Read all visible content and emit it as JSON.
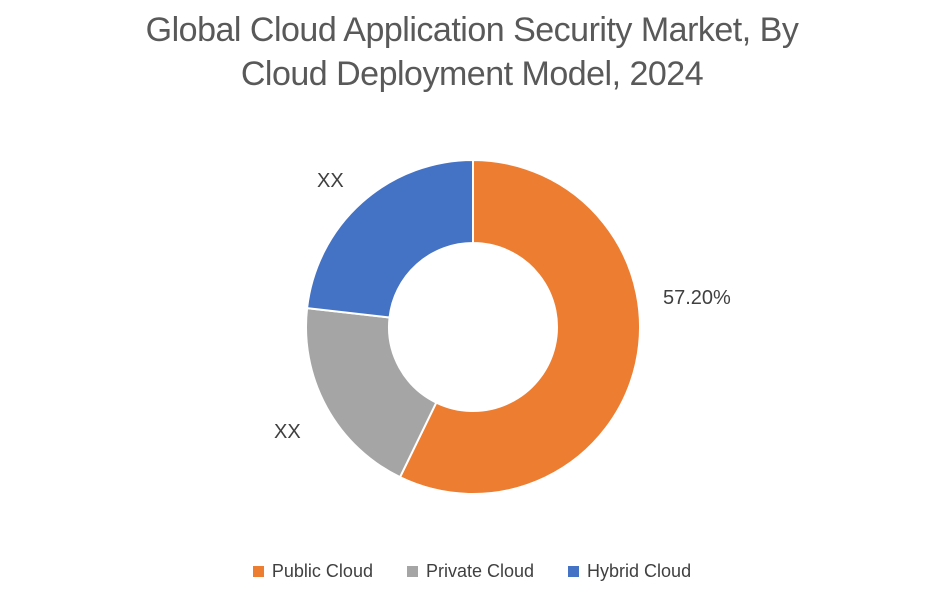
{
  "title": {
    "line1": "Global Cloud Application Security Market, By",
    "line2": "Cloud Deployment Model, 2024",
    "color": "#595959"
  },
  "chart_data": {
    "type": "pie",
    "subtype": "donut",
    "title": "Global Cloud Application Security Market, By Cloud Deployment Model, 2024",
    "hole_ratio": 0.5,
    "rotation_deg": 0,
    "direction": "clockwise",
    "legend_position": "bottom",
    "background": "#ffffff",
    "label_color": "#404040",
    "slices": [
      {
        "name": "Public Cloud",
        "percent": 57.2,
        "data_label": "57.20%",
        "color": "#ED7D31"
      },
      {
        "name": "Private Cloud",
        "percent": 19.6,
        "data_label": "XX",
        "color": "#A5A5A5"
      },
      {
        "name": "Hybrid Cloud",
        "percent": 23.2,
        "data_label": "XX",
        "color": "#4472C4"
      }
    ]
  }
}
